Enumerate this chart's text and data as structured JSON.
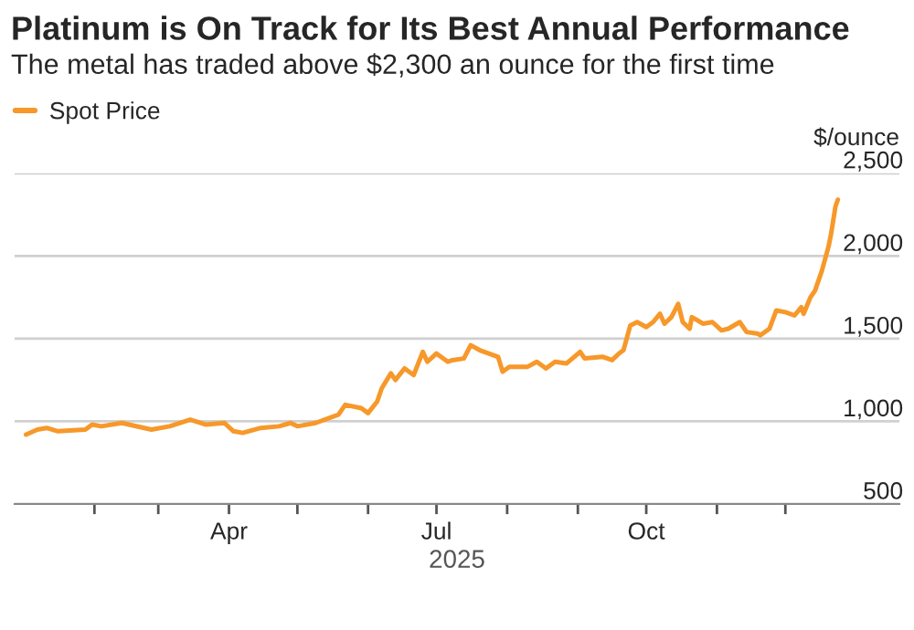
{
  "chart_data": {
    "type": "line",
    "title": "Platinum is On Track for Its Best Annual Performance",
    "subtitle": "The metal has traded above $2,300 an ounce for the first time",
    "ylabel": "$/ounce",
    "xlabel": "2025",
    "x": [
      "2025-01-02",
      "2025-01-07",
      "2025-01-11",
      "2025-01-16",
      "2025-01-28",
      "2025-01-31",
      "2025-02-04",
      "2025-02-13",
      "2025-02-26",
      "2025-03-06",
      "2025-03-15",
      "2025-03-22",
      "2025-03-30",
      "2025-04-03",
      "2025-04-07",
      "2025-04-15",
      "2025-04-23",
      "2025-04-28",
      "2025-05-01",
      "2025-05-09",
      "2025-05-19",
      "2025-05-22",
      "2025-05-29",
      "2025-06-01",
      "2025-06-05",
      "2025-06-07",
      "2025-06-11",
      "2025-06-13",
      "2025-06-17",
      "2025-06-21",
      "2025-06-25",
      "2025-06-27",
      "2025-07-01",
      "2025-07-06",
      "2025-07-08",
      "2025-07-13",
      "2025-07-16",
      "2025-07-20",
      "2025-07-28",
      "2025-07-30",
      "2025-08-02",
      "2025-08-10",
      "2025-08-14",
      "2025-08-18",
      "2025-08-22",
      "2025-08-27",
      "2025-09-02",
      "2025-09-04",
      "2025-09-12",
      "2025-09-16",
      "2025-09-19",
      "2025-09-21",
      "2025-09-24",
      "2025-09-27",
      "2025-10-01",
      "2025-10-04",
      "2025-10-07",
      "2025-10-09",
      "2025-10-12",
      "2025-10-15",
      "2025-10-17",
      "2025-10-20",
      "2025-10-21",
      "2025-10-26",
      "2025-10-30",
      "2025-11-03",
      "2025-11-06",
      "2025-11-11",
      "2025-11-14",
      "2025-11-19",
      "2025-11-20",
      "2025-11-24",
      "2025-11-27",
      "2025-12-01",
      "2025-12-05",
      "2025-12-08",
      "2025-12-09",
      "2025-12-12",
      "2025-12-14",
      "2025-12-17",
      "2025-12-20",
      "2025-12-21",
      "2025-12-23",
      "2025-12-24"
    ],
    "series": [
      {
        "name": "Spot Price",
        "color": "#f7982a",
        "values": [
          920,
          950,
          960,
          940,
          950,
          980,
          970,
          990,
          950,
          970,
          1010,
          980,
          990,
          940,
          930,
          960,
          970,
          990,
          970,
          990,
          1040,
          1100,
          1080,
          1050,
          1120,
          1200,
          1290,
          1250,
          1320,
          1280,
          1420,
          1360,
          1410,
          1360,
          1370,
          1380,
          1460,
          1430,
          1390,
          1300,
          1330,
          1330,
          1360,
          1320,
          1360,
          1350,
          1420,
          1380,
          1390,
          1370,
          1410,
          1430,
          1580,
          1600,
          1570,
          1600,
          1650,
          1590,
          1630,
          1710,
          1600,
          1560,
          1630,
          1590,
          1600,
          1550,
          1560,
          1600,
          1540,
          1530,
          1520,
          1560,
          1670,
          1660,
          1640,
          1690,
          1650,
          1750,
          1790,
          1910,
          2060,
          2130,
          2300,
          2340
        ]
      }
    ],
    "xlim": [
      "2024-12-28",
      "2026-01-20"
    ],
    "xticks": [
      {
        "value": "2025-02-01",
        "label": null
      },
      {
        "value": "2025-03-01",
        "label": null
      },
      {
        "value": "2025-04-01",
        "label": "Apr"
      },
      {
        "value": "2025-05-01",
        "label": null
      },
      {
        "value": "2025-06-01",
        "label": null
      },
      {
        "value": "2025-07-01",
        "label": "Jul"
      },
      {
        "value": "2025-08-01",
        "label": null
      },
      {
        "value": "2025-09-01",
        "label": null
      },
      {
        "value": "2025-10-01",
        "label": "Oct"
      },
      {
        "value": "2025-11-01",
        "label": null
      },
      {
        "value": "2025-12-01",
        "label": null
      }
    ],
    "ylim": [
      500,
      2500
    ],
    "yticks": [
      {
        "value": 500,
        "label": "500"
      },
      {
        "value": 1000,
        "label": "1,000"
      },
      {
        "value": 1500,
        "label": "1,500"
      },
      {
        "value": 2000,
        "label": "2,000"
      },
      {
        "value": 2500,
        "label": "2,500"
      }
    ],
    "grid": "y",
    "legend": "top left",
    "marker": "none",
    "line_style": "solid"
  }
}
